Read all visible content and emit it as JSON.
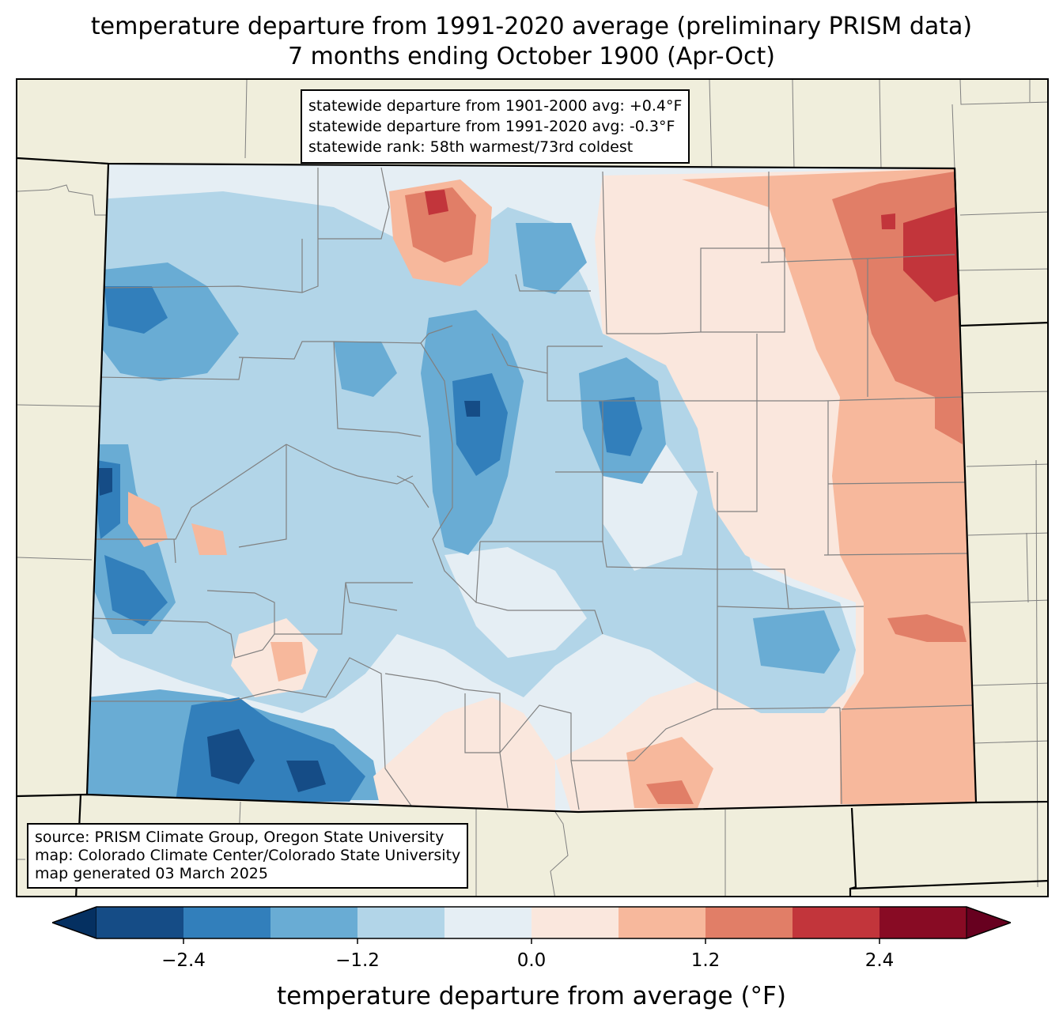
{
  "title": {
    "line1": "temperature departure from 1991-2020 average (preliminary PRISM data)",
    "line2": "7 months ending October 1900 (Apr-Oct)"
  },
  "stats_box": {
    "line1": "statewide departure from 1901-2000 avg: +0.4°F",
    "line2": "statewide departure from 1991-2020 avg: -0.3°F",
    "line3": "statewide rank: 58th warmest/73rd coldest"
  },
  "source_box": {
    "line1": "source: PRISM Climate Group, Oregon State University",
    "line2": "map: Colorado Climate Center/Colorado State University",
    "line3": "map generated 03 March 2025"
  },
  "colorbar": {
    "label": "temperature departure from average (°F)",
    "min": -3.0,
    "max": 3.0,
    "levels": [
      -3.0,
      -2.4,
      -1.8,
      -1.2,
      -0.6,
      0.0,
      0.6,
      1.2,
      1.8,
      2.4,
      3.0
    ],
    "colors": [
      "#154c86",
      "#327fbb",
      "#69acd4",
      "#b2d5e8",
      "#e5eef4",
      "#fae7dd",
      "#f7b89c",
      "#e17e67",
      "#c2353b",
      "#880b24"
    ],
    "under_color": "#053061",
    "over_color": "#67001f",
    "ticks": [
      -2.4,
      -1.2,
      0.0,
      1.2,
      2.4
    ],
    "tick_labels": [
      "−2.4",
      "−1.2",
      "0.0",
      "1.2",
      "2.4"
    ]
  },
  "colors": {
    "background_land": "#f0eedc",
    "state_border": "#000000",
    "county_border": "#808080"
  }
}
